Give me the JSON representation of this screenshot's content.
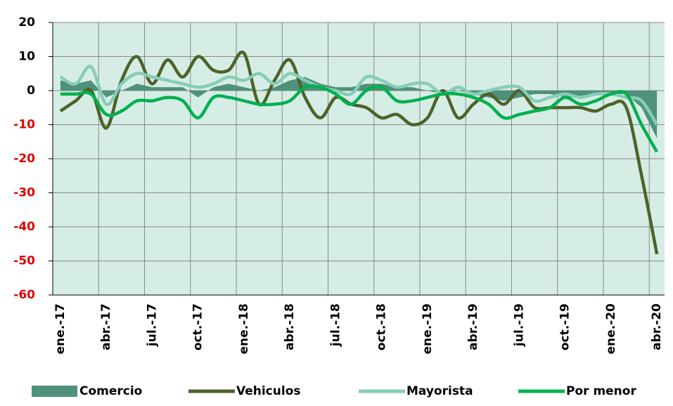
{
  "chart_data": {
    "type": "line",
    "categories": [
      "ene.-17",
      null,
      null,
      "abr.-17",
      null,
      null,
      "jul.-17",
      null,
      null,
      "oct.-17",
      null,
      null,
      "ene.-18",
      null,
      null,
      "abr.-18",
      null,
      null,
      "jul.-18",
      null,
      null,
      "oct.-18",
      null,
      null,
      "ene.-19",
      null,
      null,
      "abr.-19",
      null,
      null,
      "jul.-19",
      null,
      null,
      "oct.-19",
      null,
      null,
      "ene.-20",
      null,
      null,
      "abr.-20"
    ],
    "series": [
      {
        "name": "Comercio",
        "kind": "area",
        "color": "#4f917a",
        "values": [
          3,
          2,
          3,
          -2,
          0,
          2,
          1,
          1,
          1,
          -2,
          1,
          2,
          1,
          0,
          1,
          3,
          4,
          2,
          1,
          1,
          2,
          2,
          1,
          1,
          0,
          -1,
          0,
          -1,
          -2,
          -3,
          -2,
          -1,
          -1,
          -2,
          -2,
          -1,
          -1,
          -1,
          -5,
          -14
        ]
      },
      {
        "name": "Vehiculos",
        "kind": "line",
        "color": "#4f6228",
        "values": [
          -6,
          -3,
          0,
          -11,
          3,
          10,
          2,
          9,
          4,
          10,
          6,
          6,
          11,
          -4,
          3,
          9,
          -2,
          -8,
          -2,
          -4,
          -5,
          -8,
          -7,
          -10,
          -8,
          0,
          -8,
          -4,
          -1,
          -4,
          0,
          -5,
          -5,
          -5,
          -5,
          -6,
          -4,
          -5,
          -25,
          -48
        ]
      },
      {
        "name": "Mayorista",
        "kind": "line",
        "color": "#86cdb8",
        "values": [
          4,
          2,
          7,
          -4,
          2,
          5,
          4,
          3,
          2,
          1,
          2,
          4,
          3,
          5,
          2,
          5,
          3,
          1,
          0,
          -1,
          4,
          3,
          1,
          2,
          2,
          -1,
          1,
          -1,
          0,
          1,
          1,
          -3,
          -2,
          -1,
          -2,
          -1,
          -1,
          -2,
          -3,
          -10
        ]
      },
      {
        "name": "Por menor",
        "kind": "line",
        "color": "#00b050",
        "values": [
          -1,
          -1,
          -1,
          -7,
          -6,
          -3,
          -3,
          -2,
          -3,
          -8,
          -2,
          -2,
          -3,
          -4,
          -4,
          -3,
          1,
          1,
          -1,
          -4,
          0,
          1,
          -3,
          -3,
          -2,
          -1,
          -1,
          -2,
          -4,
          -8,
          -7,
          -6,
          -5,
          -2,
          -4,
          -3,
          -1,
          -1,
          -10,
          -18
        ]
      }
    ],
    "ylim": [
      -60,
      20
    ],
    "yticks": [
      -60,
      -50,
      -40,
      -30,
      -20,
      -10,
      0,
      10,
      20
    ],
    "negative_tick_color": "#e00000",
    "plot_background": "#d6ede6",
    "grid": true,
    "legend": "bottom"
  }
}
